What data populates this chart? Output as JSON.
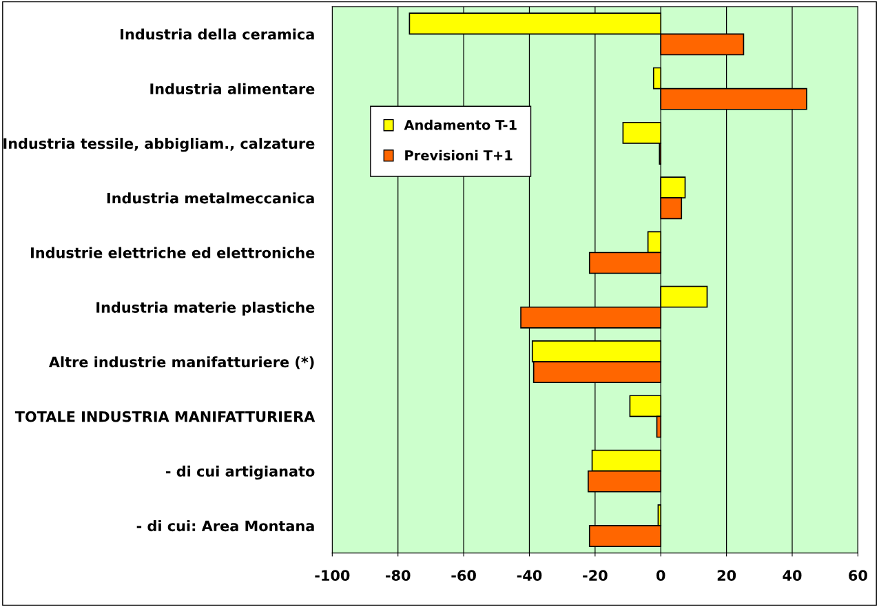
{
  "chart_data": {
    "type": "bar",
    "orientation": "horizontal",
    "categories": [
      "Industria della ceramica",
      "Industria alimentare",
      "Industria tessile, abbigliam., calzature",
      "Industria metalmeccanica",
      "Industrie elettriche ed elettroniche",
      "Industria materie plastiche",
      "Altre industrie manifatturiere (*)",
      "TOTALE INDUSTRIA MANIFATTURIERA",
      "- di cui artigianato",
      "- di cui: Area Montana"
    ],
    "series": [
      {
        "name": "Andamento T-1",
        "color": "#ffff00",
        "values": [
          -76.5,
          -2.2,
          -11.5,
          7.4,
          -3.9,
          14.1,
          -39.1,
          -9.4,
          -20.9,
          -0.8
        ]
      },
      {
        "name": "Previsioni T+1",
        "color": "#ff6600",
        "values": [
          25.2,
          44.4,
          -0.4,
          6.3,
          -21.7,
          -42.6,
          -38.7,
          -1.2,
          -22.1,
          -21.7
        ]
      }
    ],
    "xlim": [
      -100,
      60
    ],
    "xticks": [
      -100,
      -80,
      -60,
      -40,
      -20,
      0,
      20,
      40,
      60
    ],
    "grid": "x",
    "legend": "top left"
  }
}
